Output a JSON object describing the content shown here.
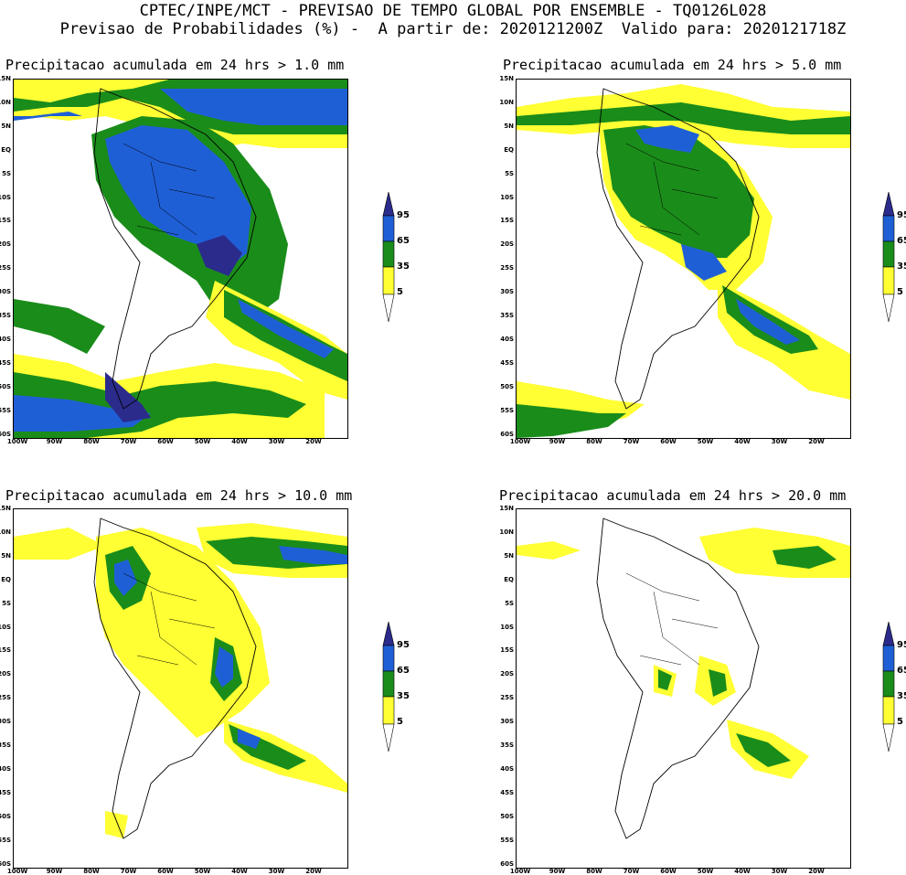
{
  "header": {
    "line1": "CPTEC/INPE/MCT - PREVISAO DE TEMPO GLOBAL POR ENSEMBLE - TQ0126L028",
    "line2": "Previsao de Probabilidades (%) -  A partir de: 2020121200Z  Valido para: 2020121718Z"
  },
  "panels": [
    {
      "title": "Precipitacao acumulada em 24 hrs > 1.0 mm"
    },
    {
      "title": "Precipitacao acumulada em 24 hrs > 5.0 mm"
    },
    {
      "title": "Precipitacao acumulada em 24 hrs > 10.0 mm"
    },
    {
      "title": "Precipitacao acumulada em 24 hrs > 20.0 mm"
    }
  ],
  "lat_labels": [
    "15N",
    "10N",
    "5N",
    "EQ",
    "5S",
    "10S",
    "15S",
    "20S",
    "25S",
    "30S",
    "35S",
    "40S",
    "45S",
    "50S",
    "55S",
    "60S"
  ],
  "lon_labels": [
    "100W",
    "90W",
    "80W",
    "70W",
    "60W",
    "50W",
    "40W",
    "30W",
    "20W"
  ],
  "colorbar": {
    "levels": [
      "95",
      "65",
      "35",
      "5"
    ],
    "colors": {
      "low": "#ffff33",
      "mid": "#1a8c1a",
      "high": "#1f5fd6",
      "top": "#2b2b8c"
    }
  }
}
